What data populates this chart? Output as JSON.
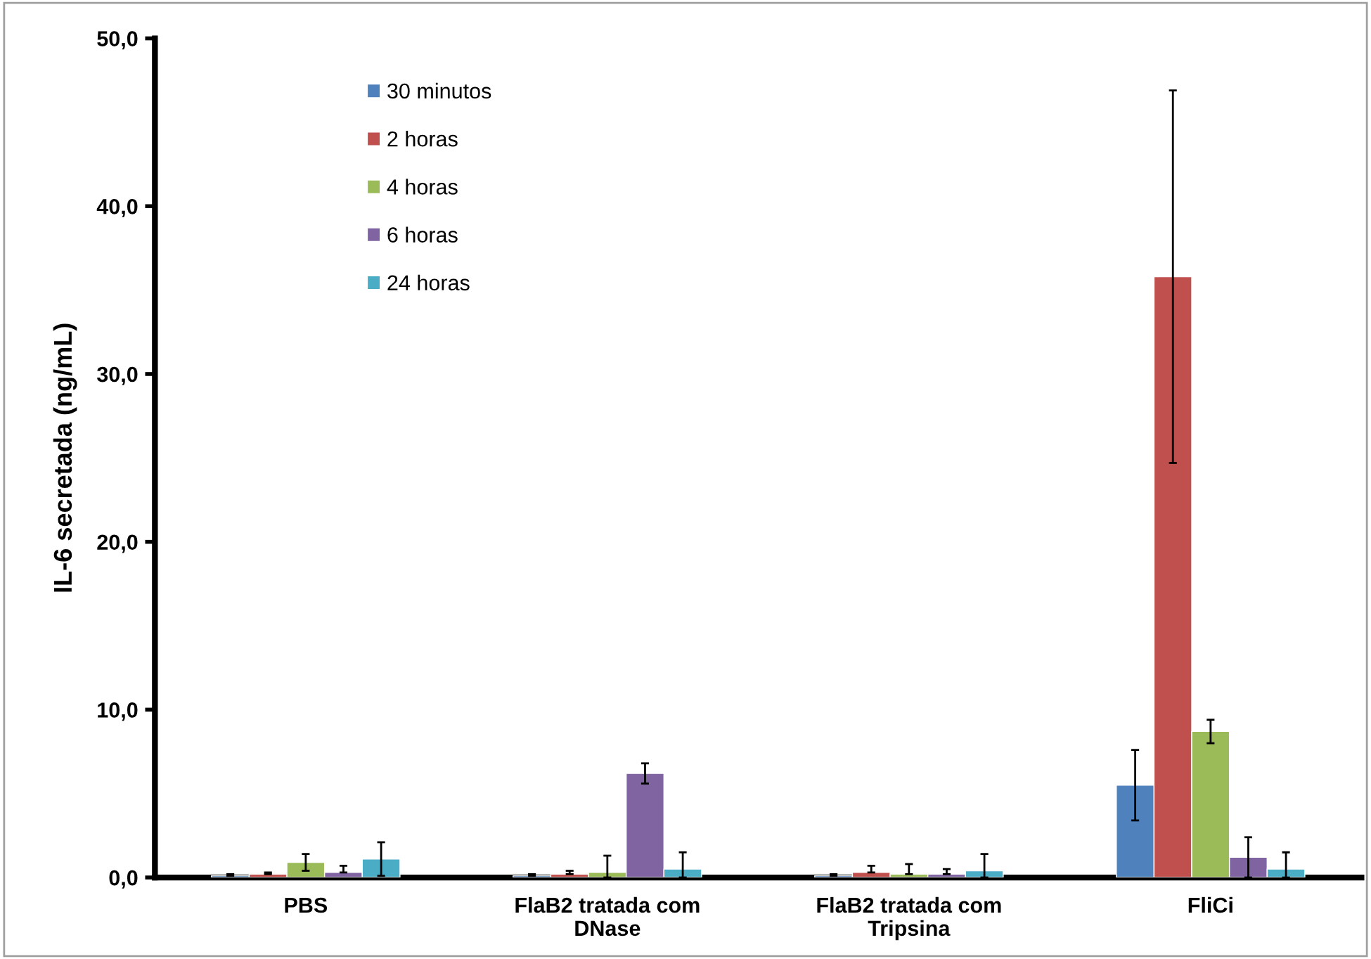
{
  "chart_data": {
    "type": "bar",
    "ylabel": "IL-6 secretada (ng/mL)",
    "categories": [
      "PBS",
      "FlaB2 tratada com\nDNase",
      "FlaB2 tratada com\nTripsina",
      "FliCi"
    ],
    "series": [
      {
        "name": "30 minutos",
        "color": "#4f81bd",
        "values": [
          0.1,
          0.1,
          0.1,
          5.5
        ],
        "errors": [
          [
            0.1,
            0.2
          ],
          [
            0.1,
            0.2
          ],
          [
            0.1,
            0.2
          ],
          2.1
        ]
      },
      {
        "name": "2 horas",
        "color": "#c0504d",
        "values": [
          0.2,
          0.2,
          0.3,
          35.8
        ],
        "errors": [
          [
            0.2,
            0.3
          ],
          [
            0.2,
            0.4
          ],
          [
            0.3,
            0.7
          ],
          11.1
        ]
      },
      {
        "name": "4 horas",
        "color": "#9bbb59",
        "values": [
          0.9,
          0.3,
          0.2,
          8.7
        ],
        "errors": [
          0.5,
          [
            0,
            1.3
          ],
          [
            0.2,
            0.8
          ],
          0.7
        ]
      },
      {
        "name": "6 horas",
        "color": "#8064a2",
        "values": [
          0.3,
          6.2,
          0.2,
          1.2
        ],
        "errors": [
          [
            0.3,
            0.7
          ],
          0.6,
          [
            0.2,
            0.5
          ],
          1.2
        ]
      },
      {
        "name": "24 horas",
        "color": "#4bacc6",
        "values": [
          1.1,
          0.5,
          0.4,
          0.5
        ],
        "errors": [
          1.0,
          [
            0,
            1.5
          ],
          [
            0,
            1.4
          ],
          [
            0,
            1.5
          ]
        ]
      }
    ],
    "ylim": [
      0,
      50
    ],
    "yticks": [
      {
        "value": 0,
        "label": "0,0"
      },
      {
        "value": 10,
        "label": "10,0"
      },
      {
        "value": 20,
        "label": "20,0"
      },
      {
        "value": 30,
        "label": "30,0"
      },
      {
        "value": 40,
        "label": "40,0"
      },
      {
        "value": 50,
        "label": "50,0"
      }
    ],
    "grid": false,
    "legend": "top left"
  }
}
